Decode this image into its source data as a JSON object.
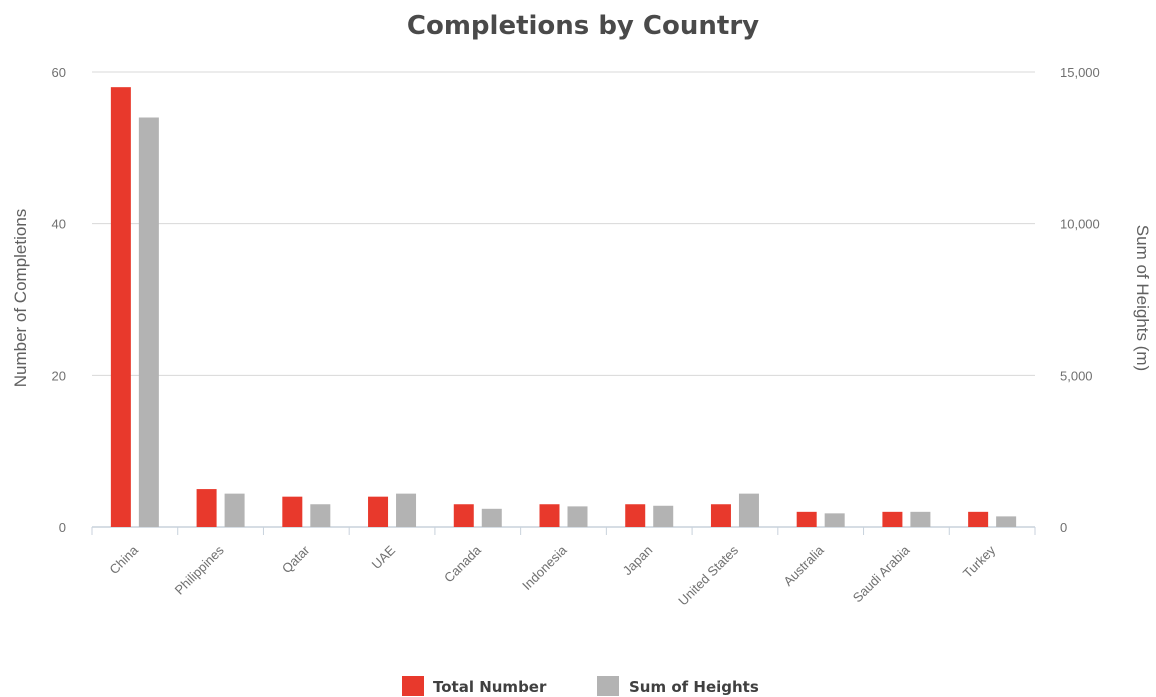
{
  "chart_data": {
    "type": "bar",
    "title": "Completions by Country",
    "ylabel_left": "Number of Completions",
    "ylabel_right": "Sum of Heights (m)",
    "categories": [
      "China",
      "Philippines",
      "Qatar",
      "UAE",
      "Canada",
      "Indonesia",
      "Japan",
      "United States",
      "Australia",
      "Saudi Arabia",
      "Turkey"
    ],
    "series": [
      {
        "name": "Total Number",
        "axis": "left",
        "color": "#e8392c",
        "values": [
          58,
          5,
          4,
          4,
          3,
          3,
          3,
          3,
          2,
          2,
          2
        ]
      },
      {
        "name": "Sum of Heights",
        "axis": "right",
        "color": "#b3b3b3",
        "values": [
          13500,
          1100,
          750,
          1100,
          600,
          680,
          700,
          1100,
          450,
          500,
          350
        ]
      }
    ],
    "ylim_left": [
      0,
      60
    ],
    "ylim_right": [
      0,
      15000
    ],
    "yticks_left": [
      "0",
      "20",
      "40",
      "60"
    ],
    "yticks_right": [
      "0",
      "5,000",
      "10,000",
      "15,000"
    ],
    "legend": "bottom-center",
    "grid": true
  }
}
